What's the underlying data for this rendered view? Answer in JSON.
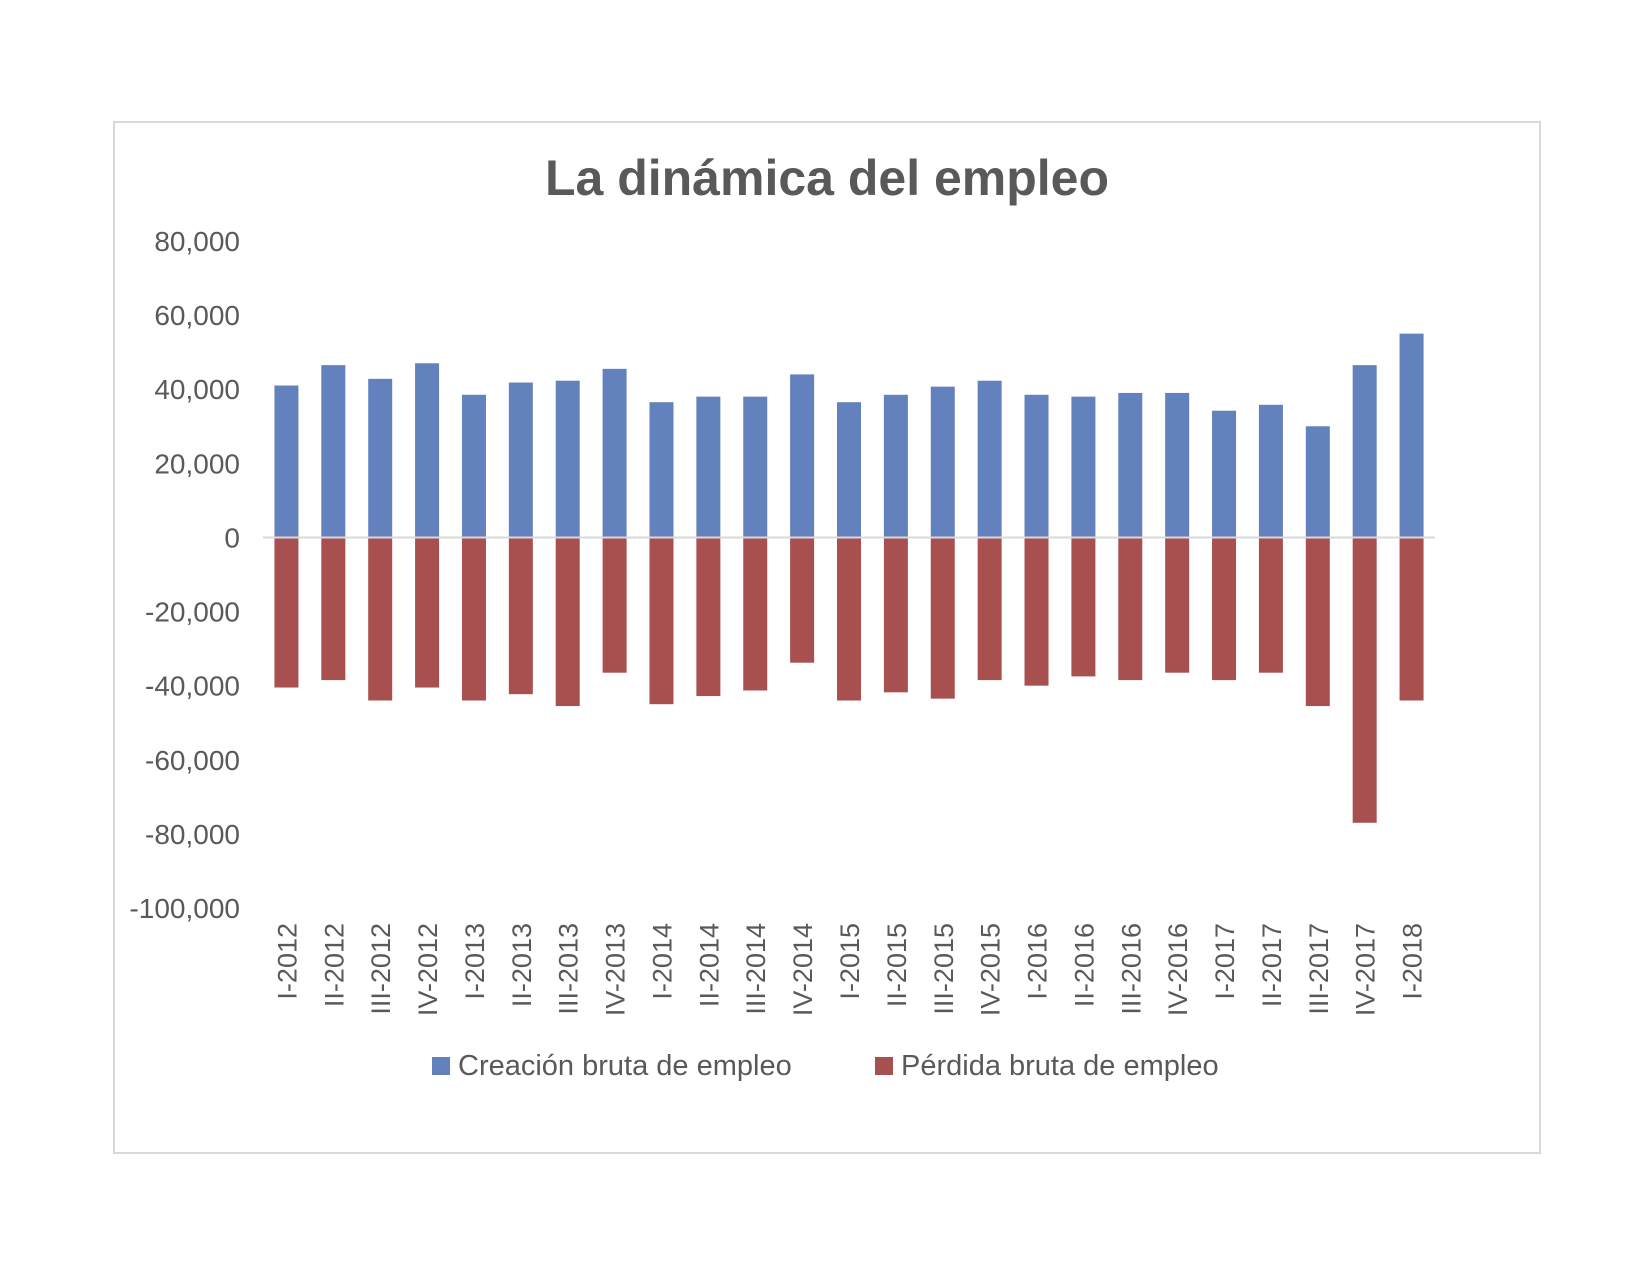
{
  "chart_data": {
    "type": "bar",
    "title": "La dinámica del empleo",
    "xlabel": "",
    "ylabel": "",
    "ylim": [
      -100000,
      80000
    ],
    "yticks": [
      80000,
      60000,
      40000,
      20000,
      0,
      -20000,
      -40000,
      -60000,
      -80000,
      -100000
    ],
    "ytick_labels": [
      "80,000",
      "60,000",
      "40,000",
      "20,000",
      "0",
      "-20,000",
      "-40,000",
      "-60,000",
      "-80,000",
      "-100,000"
    ],
    "grid": false,
    "legend_position": "bottom",
    "categories": [
      "I-2012",
      "II-2012",
      "III-2012",
      "IV-2012",
      "I-2013",
      "II-2013",
      "III-2013",
      "IV-2013",
      "I-2014",
      "II-2014",
      "III-2014",
      "IV-2014",
      "I-2015",
      "II-2015",
      "III-2015",
      "IV-2015",
      "I-2016",
      "II-2016",
      "III-2016",
      "IV-2016",
      "I-2017",
      "II-2017",
      "III-2017",
      "IV-2017",
      "I-2018"
    ],
    "series": [
      {
        "name": "Creación bruta de empleo",
        "color": "#6381bc",
        "values": [
          41000,
          46500,
          42800,
          47000,
          38500,
          41800,
          42300,
          45500,
          36500,
          38000,
          38000,
          44000,
          36500,
          38500,
          40700,
          42300,
          38500,
          38000,
          39000,
          39000,
          34200,
          35800,
          30000,
          46500,
          55000
        ]
      },
      {
        "name": "Pérdida bruta de empleo",
        "color": "#a84f4f",
        "values": [
          -40500,
          -38500,
          -44000,
          -40500,
          -44000,
          -42300,
          -45500,
          -36500,
          -45000,
          -42800,
          -41300,
          -33800,
          -44000,
          -41800,
          -43500,
          -38500,
          -40000,
          -37500,
          -38500,
          -36500,
          -38500,
          -36500,
          -45500,
          -77000,
          -44000
        ]
      }
    ]
  }
}
